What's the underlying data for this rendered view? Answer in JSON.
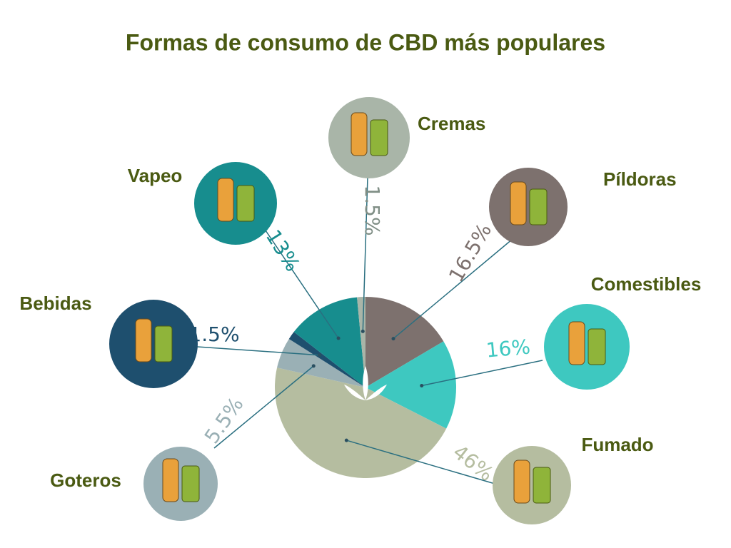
{
  "chart_data": {
    "type": "pie",
    "title": "Formas de consumo de CBD más populares",
    "categories": [
      "Píldoras",
      "Comestibles",
      "Fumado",
      "Goteros",
      "Bebidas",
      "Vapeo",
      "Cremas"
    ],
    "values": [
      16.5,
      16,
      46,
      5.5,
      1.5,
      13,
      1.5
    ],
    "value_labels": [
      "16.5%",
      "16%",
      "46%",
      "5.5%",
      "1.5%",
      "13%",
      "1.5%"
    ],
    "colors": [
      "#7d716e",
      "#3ec8c0",
      "#b5bda0",
      "#9ab0b5",
      "#1e4f6e",
      "#178d8e",
      "#a9b5a8"
    ]
  }
}
